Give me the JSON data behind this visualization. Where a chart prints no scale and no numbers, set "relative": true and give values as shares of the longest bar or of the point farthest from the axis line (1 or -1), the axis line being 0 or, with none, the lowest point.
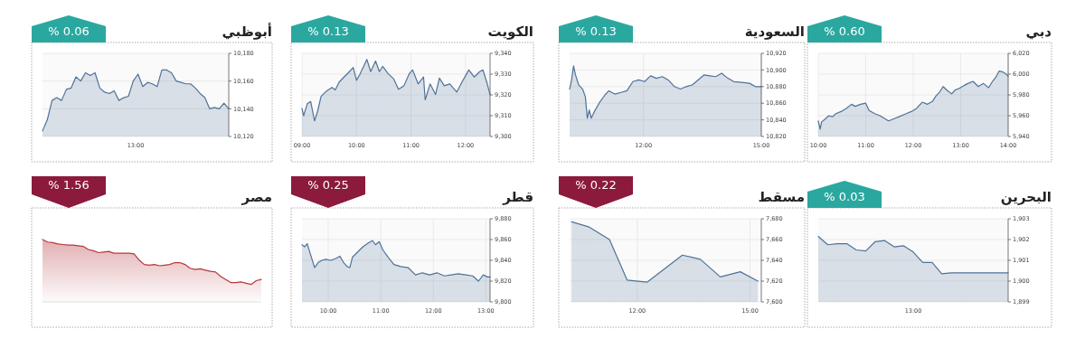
{
  "chart_data": [
    {
      "type": "area",
      "title": "دبي",
      "annotations": [
        "% 0.60"
      ],
      "grid": true,
      "x": [
        10,
        10.04,
        10.07,
        10.15,
        10.22,
        10.3,
        10.37,
        10.48,
        10.59,
        10.7,
        10.78,
        10.89,
        11.0,
        11.07,
        11.19,
        11.3,
        11.41,
        11.48,
        11.59,
        11.7,
        11.85,
        11.96,
        12.07,
        12.19,
        12.3,
        12.41,
        12.48,
        12.56,
        12.63,
        12.7,
        12.81,
        12.89,
        12.96,
        13.07,
        13.15,
        13.26,
        13.37,
        13.48,
        13.59,
        13.67,
        13.74,
        13.81,
        13.89,
        13.96,
        14.0
      ],
      "series": [
        {
          "color": "#4f7299",
          "values": [
            5955,
            5947,
            5954,
            5957,
            5960,
            5959,
            5962,
            5964,
            5967,
            5971,
            5969,
            5971,
            5972,
            5965,
            5962,
            5960,
            5957,
            5955,
            5957,
            5959,
            5962,
            5964,
            5967,
            5973,
            5971,
            5974,
            5979,
            5983,
            5988,
            5985,
            5981,
            5985,
            5986,
            5989,
            5991,
            5993,
            5988,
            5991,
            5987,
            5993,
            5997,
            6003,
            6002,
            6000,
            5998
          ]
        }
      ],
      "xlim": [
        10,
        14
      ],
      "xticks": [
        {
          "value": 10,
          "label": "10:00"
        },
        {
          "value": 11,
          "label": "11:00"
        },
        {
          "value": 12,
          "label": "12:00"
        },
        {
          "value": 13,
          "label": "13:00"
        },
        {
          "value": 14,
          "label": "14:00"
        }
      ],
      "ylim": [
        5940,
        6020
      ],
      "yticks": [
        {
          "value": 5940,
          "label": "5,940"
        },
        {
          "value": 5960,
          "label": "5,960"
        },
        {
          "value": 5980,
          "label": "5,980"
        },
        {
          "value": 6000,
          "label": "6,000"
        },
        {
          "value": 6020,
          "label": "6,020"
        }
      ]
    },
    {
      "type": "area",
      "title": "السعودية",
      "annotations": [
        "% 0.13"
      ],
      "grid": true,
      "x": [
        10.12,
        10.17,
        10.22,
        10.27,
        10.35,
        10.45,
        10.52,
        10.57,
        10.62,
        10.67,
        10.75,
        10.87,
        11.02,
        11.12,
        11.27,
        11.43,
        11.58,
        11.73,
        11.88,
        12.03,
        12.18,
        12.33,
        12.48,
        12.63,
        12.79,
        12.94,
        13.09,
        13.24,
        13.39,
        13.54,
        13.69,
        13.84,
        13.99,
        14.15,
        14.3,
        14.5,
        14.7,
        14.85,
        15.0
      ],
      "series": [
        {
          "color": "#4f7299",
          "values": [
            10877,
            10888,
            10905,
            10894,
            10882,
            10877,
            10868,
            10842,
            10852,
            10842,
            10850,
            10860,
            10870,
            10875,
            10871,
            10873,
            10875,
            10886,
            10888,
            10886,
            10893,
            10890,
            10892,
            10888,
            10880,
            10877,
            10880,
            10882,
            10888,
            10894,
            10893,
            10892,
            10896,
            10890,
            10886,
            10885,
            10884,
            10880,
            10880
          ]
        }
      ],
      "xlim": [
        10.12,
        15
      ],
      "xticks": [
        {
          "value": 12,
          "label": "12:00"
        },
        {
          "value": 15,
          "label": "15:00"
        }
      ],
      "ylim": [
        10820,
        10920
      ],
      "yticks": [
        {
          "value": 10820,
          "label": "10,820"
        },
        {
          "value": 10840,
          "label": "10,840"
        },
        {
          "value": 10860,
          "label": "10,860"
        },
        {
          "value": 10880,
          "label": "10,880"
        },
        {
          "value": 10900,
          "label": "10,900"
        },
        {
          "value": 10920,
          "label": "10,920"
        }
      ]
    },
    {
      "type": "area",
      "title": "الكويت",
      "annotations": [
        "% 0.13"
      ],
      "grid": true,
      "x": [
        9.0,
        9.03,
        9.1,
        9.16,
        9.23,
        9.29,
        9.35,
        9.45,
        9.55,
        9.61,
        9.68,
        9.77,
        9.87,
        9.94,
        10.0,
        10.06,
        10.19,
        10.26,
        10.35,
        10.42,
        10.48,
        10.58,
        10.68,
        10.77,
        10.87,
        10.97,
        11.03,
        11.13,
        11.23,
        11.26,
        11.35,
        11.45,
        11.52,
        11.61,
        11.71,
        11.84,
        11.94,
        12.06,
        12.16,
        12.26,
        12.32,
        12.39,
        12.45
      ],
      "series": [
        {
          "color": "#4f7299",
          "values": [
            9313.4,
            9310,
            9315.9,
            9316.8,
            9307.5,
            9312.5,
            9319.3,
            9321.9,
            9323.6,
            9322.4,
            9326.1,
            9328.6,
            9331.2,
            9333.2,
            9327,
            9329.8,
            9337.1,
            9331.2,
            9336.3,
            9331.2,
            9333.7,
            9330.3,
            9327.8,
            9322.7,
            9324.4,
            9330.3,
            9332,
            9325.3,
            9328.6,
            9317.6,
            9325.3,
            9320.2,
            9328.1,
            9324.4,
            9325.3,
            9321.4,
            9326.4,
            9332,
            9328.6,
            9331.2,
            9332,
            9326.1,
            9320.2
          ]
        }
      ],
      "xlim": [
        9,
        12.45
      ],
      "xticks": [
        {
          "value": 9,
          "label": "09:00"
        },
        {
          "value": 10,
          "label": "10:00"
        },
        {
          "value": 11,
          "label": "11:00"
        },
        {
          "value": 12,
          "label": "12:00"
        }
      ],
      "ylim": [
        9300,
        9340
      ],
      "yticks": [
        {
          "value": 9300,
          "label": "9,300"
        },
        {
          "value": 9310,
          "label": "9,310"
        },
        {
          "value": 9320,
          "label": "9,320"
        },
        {
          "value": 9330,
          "label": "9,330"
        },
        {
          "value": 9340,
          "label": "9,340"
        }
      ]
    },
    {
      "type": "area",
      "title": "أبوظبي",
      "annotations": [
        "% 0.06",
        "13:00"
      ],
      "grid": "y",
      "categories": [
        null,
        null,
        null,
        null,
        null,
        null,
        null,
        null,
        null,
        null,
        null,
        null,
        null,
        null,
        null,
        null,
        null,
        null,
        null,
        null,
        null,
        null,
        null,
        null,
        null,
        null,
        null,
        null,
        null,
        null,
        null,
        null,
        null,
        null,
        null,
        null,
        null,
        null,
        null,
        null
      ],
      "series": [
        {
          "color": "#4f7299",
          "values": [
            10124,
            10132,
            10146,
            10148,
            10146,
            10154,
            10155,
            10163,
            10160,
            10166,
            10164,
            10166,
            10155,
            10152,
            10151,
            10153,
            10146,
            10148,
            10149,
            10160,
            10165,
            10156,
            10159,
            10158,
            10156,
            10168,
            10168,
            10166,
            10160,
            10159,
            10158,
            10158,
            10155,
            10151,
            10148,
            10140,
            10141,
            10140,
            10144,
            10140
          ]
        }
      ],
      "ylim": [
        10120,
        10180
      ],
      "yticks": [
        {
          "value": 10120,
          "label": "10,120"
        },
        {
          "value": 10140,
          "label": "10,140"
        },
        {
          "value": 10160,
          "label": "10,160"
        },
        {
          "value": 10180,
          "label": "10,180"
        }
      ]
    },
    {
      "type": "area",
      "title": "البحرين",
      "annotations": [
        "% 0.03",
        "13:00"
      ],
      "grid": "y",
      "categories": [
        null,
        null,
        null,
        null,
        null,
        null,
        null,
        null,
        null,
        null,
        null,
        null,
        null,
        null,
        null,
        null,
        null,
        null,
        null,
        null,
        null
      ],
      "series": [
        {
          "color": "#4f7299",
          "values": [
            1902.15,
            1901.75,
            1901.8,
            1901.8,
            1901.5,
            1901.45,
            1901.9,
            1901.95,
            1901.65,
            1901.7,
            1901.4,
            1900.9,
            1900.9,
            1900.35,
            1900.4,
            1900.4,
            1900.4,
            1900.4,
            1900.4,
            1900.4,
            1900.4
          ]
        }
      ],
      "ylim": [
        1899,
        1903
      ],
      "yticks": [
        {
          "value": 1899,
          "label": "1,899"
        },
        {
          "value": 1900,
          "label": "1,900"
        },
        {
          "value": 1901,
          "label": "1,901"
        },
        {
          "value": 1902,
          "label": "1,902"
        },
        {
          "value": 1903,
          "label": "1,903"
        }
      ]
    },
    {
      "type": "area",
      "title": "مسقط",
      "annotations": [
        "% 0.22"
      ],
      "grid": true,
      "x": [
        10.25,
        10.72,
        11.26,
        11.73,
        12.26,
        13.2,
        13.68,
        14.21,
        14.74,
        15.21
      ],
      "series": [
        {
          "color": "#4f7299",
          "values": [
            7677,
            7672,
            7660,
            7621,
            7619,
            7645,
            7641,
            7624,
            7629,
            7620
          ]
        }
      ],
      "xlim": [
        10.2,
        15.3
      ],
      "xticks": [
        {
          "value": 12,
          "label": "12:00"
        },
        {
          "value": 15,
          "label": "15:00"
        }
      ],
      "ylim": [
        7600,
        7680
      ],
      "yticks": [
        {
          "value": 7600,
          "label": "7,600"
        },
        {
          "value": 7620,
          "label": "7,620"
        },
        {
          "value": 7640,
          "label": "7,640"
        },
        {
          "value": 7660,
          "label": "7,660"
        },
        {
          "value": 7680,
          "label": "7,680"
        }
      ]
    },
    {
      "type": "area",
      "title": "قطر",
      "annotations": [
        "% 0.25"
      ],
      "grid": true,
      "x": [
        9.5,
        9.55,
        9.6,
        9.66,
        9.74,
        9.81,
        9.88,
        9.95,
        10.05,
        10.15,
        10.22,
        10.29,
        10.36,
        10.41,
        10.46,
        10.56,
        10.66,
        10.77,
        10.84,
        10.9,
        10.97,
        11.04,
        11.14,
        11.25,
        11.38,
        11.52,
        11.66,
        11.79,
        11.93,
        12.07,
        12.21,
        12.34,
        12.48,
        12.62,
        12.75,
        12.86,
        12.95,
        13.03,
        13.08
      ],
      "series": [
        {
          "color": "#4f7299",
          "values": [
            9855,
            9853,
            9856,
            9846,
            9833,
            9838,
            9840,
            9841,
            9840,
            9842,
            9844,
            9838,
            9834,
            9833,
            9843,
            9848,
            9853,
            9857,
            9859,
            9855,
            9858,
            9850,
            9843,
            9836,
            9834,
            9833,
            9826,
            9828,
            9826,
            9828,
            9825,
            9826,
            9827,
            9826,
            9825,
            9820,
            9826,
            9824,
            9824
          ]
        }
      ],
      "xlim": [
        9.5,
        13.08
      ],
      "xticks": [
        {
          "value": 10,
          "label": "10:00"
        },
        {
          "value": 11,
          "label": "11:00"
        },
        {
          "value": 12,
          "label": "12:00"
        },
        {
          "value": 13,
          "label": "13:00"
        }
      ],
      "ylim": [
        9800,
        9880
      ],
      "yticks": [
        {
          "value": 9800,
          "label": "9,800"
        },
        {
          "value": 9820,
          "label": "9,820"
        },
        {
          "value": 9840,
          "label": "9,840"
        },
        {
          "value": 9860,
          "label": "9,860"
        },
        {
          "value": 9880,
          "label": "9,880"
        }
      ]
    },
    {
      "type": "area",
      "title": "مصر",
      "annotations": [
        "% 1.56"
      ],
      "relative": true,
      "categories": [
        null,
        null,
        null,
        null,
        null,
        null,
        null,
        null,
        null,
        null,
        null,
        null,
        null,
        null,
        null,
        null,
        null,
        null,
        null,
        null,
        null,
        null,
        null,
        null,
        null,
        null,
        null,
        null,
        null,
        null,
        null,
        null,
        null,
        null,
        null,
        null,
        null,
        null,
        null,
        null,
        null,
        null,
        null,
        null
      ],
      "series": [
        {
          "color": "#b5373d",
          "values": [
            1,
            0.96,
            0.95,
            0.93,
            0.92,
            0.91,
            0.91,
            0.9,
            0.89,
            0.84,
            0.82,
            0.79,
            0.8,
            0.81,
            0.78,
            0.78,
            0.78,
            0.78,
            0.77,
            0.67,
            0.6,
            0.59,
            0.6,
            0.58,
            0.59,
            0.6,
            0.63,
            0.63,
            0.6,
            0.54,
            0.52,
            0.53,
            0.51,
            0.49,
            0.48,
            0.41,
            0.36,
            0.31,
            0.31,
            0.32,
            0.3,
            0.28,
            0.34,
            0.36
          ]
        }
      ]
    }
  ]
}
